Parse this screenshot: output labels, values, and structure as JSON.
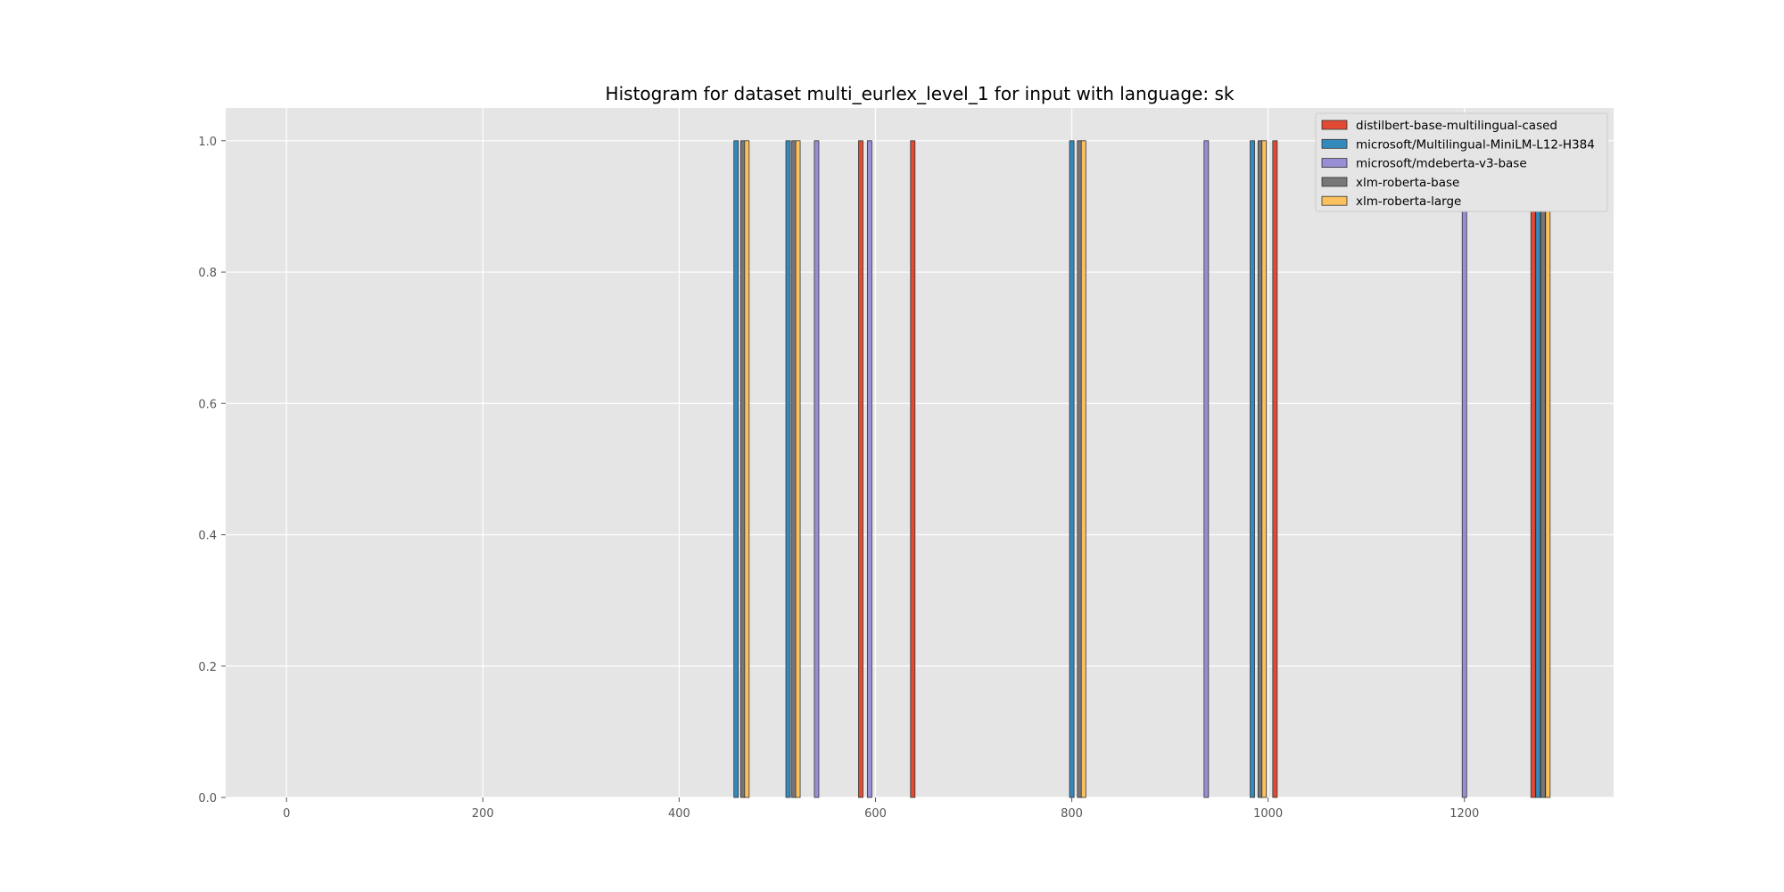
{
  "chart_data": {
    "type": "bar",
    "title": "Histogram for dataset multi_eurlex_level_1 for input with language: sk",
    "xlabel": "",
    "ylabel": "",
    "xlim": [
      -62,
      1352
    ],
    "ylim": [
      0,
      1.05
    ],
    "grid": true,
    "legend_position": "top-right",
    "x_ticks": [
      0,
      200,
      400,
      600,
      800,
      1000,
      1200
    ],
    "x_tick_labels": [
      "0",
      "200",
      "400",
      "600",
      "800",
      "1000",
      "1200"
    ],
    "y_ticks": [
      0.0,
      0.2,
      0.4,
      0.6,
      0.8,
      1.0
    ],
    "y_tick_labels": [
      "0.0",
      "0.2",
      "0.4",
      "0.6",
      "0.8",
      "1.0"
    ],
    "series": [
      {
        "name": "distilbert-base-multilingual-cased",
        "color": "#E24A33",
        "bars": [
          {
            "x": 585,
            "y": 1
          },
          {
            "x": 638,
            "y": 1
          },
          {
            "x": 1007,
            "y": 1
          },
          {
            "x": 1270,
            "y": 1
          }
        ]
      },
      {
        "name": "microsoft/Multilingual-MiniLM-L12-H384",
        "color": "#348ABD",
        "bars": [
          {
            "x": 458,
            "y": 1
          },
          {
            "x": 511,
            "y": 1
          },
          {
            "x": 800,
            "y": 1
          },
          {
            "x": 984,
            "y": 1
          },
          {
            "x": 1275,
            "y": 1
          }
        ]
      },
      {
        "name": "microsoft/mdeberta-v3-base",
        "color": "#988ED5",
        "bars": [
          {
            "x": 540,
            "y": 1
          },
          {
            "x": 594,
            "y": 1
          },
          {
            "x": 937,
            "y": 1
          },
          {
            "x": 1200,
            "y": 1
          }
        ]
      },
      {
        "name": "xlm-roberta-base",
        "color": "#777777",
        "bars": [
          {
            "x": 465,
            "y": 1
          },
          {
            "x": 517,
            "y": 1
          },
          {
            "x": 808,
            "y": 1
          },
          {
            "x": 992,
            "y": 1
          },
          {
            "x": 1280,
            "y": 1
          }
        ]
      },
      {
        "name": "xlm-roberta-large",
        "color": "#FBC15E",
        "bars": [
          {
            "x": 469,
            "y": 1
          },
          {
            "x": 521,
            "y": 1
          },
          {
            "x": 812,
            "y": 1
          },
          {
            "x": 996,
            "y": 1
          },
          {
            "x": 1285,
            "y": 1
          }
        ]
      }
    ]
  }
}
